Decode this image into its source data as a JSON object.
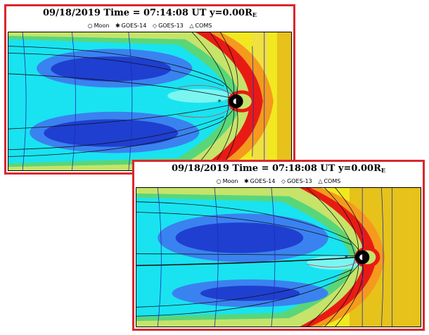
{
  "panels": [
    {
      "date": "09/18/2019",
      "time_label": "Time =",
      "time": "07:14:08",
      "ut_label": "UT",
      "y_label": "y=",
      "y_value": "0.00R",
      "y_sub": "E",
      "legend": [
        {
          "symbol": "○",
          "label": "Moon"
        },
        {
          "symbol": "✱",
          "label": "GOES-14"
        },
        {
          "symbol": "◇",
          "label": "GOES-13"
        },
        {
          "symbol": "△",
          "label": "COMS"
        }
      ]
    },
    {
      "date": "09/18/2019",
      "time_label": "Time =",
      "time": "07:18:08",
      "ut_label": "UT",
      "y_label": "y=",
      "y_value": "0.00R",
      "y_sub": "E",
      "legend": [
        {
          "symbol": "○",
          "label": "Moon"
        },
        {
          "symbol": "✱",
          "label": "GOES-14"
        },
        {
          "symbol": "◇",
          "label": "GOES-13"
        },
        {
          "symbol": "△",
          "label": "COMS"
        }
      ]
    }
  ],
  "colors": {
    "frame_border": "#d8282f",
    "dark_blue": "#1f3fd0",
    "blue": "#3a82f0",
    "cyan": "#19e3f0",
    "light_cyan": "#7af5f0",
    "green": "#59d67a",
    "yellow_green": "#c6e36a",
    "yellow": "#f2e822",
    "orange": "#f59a1e",
    "red": "#e81b14",
    "gold": "#e6c21a"
  }
}
